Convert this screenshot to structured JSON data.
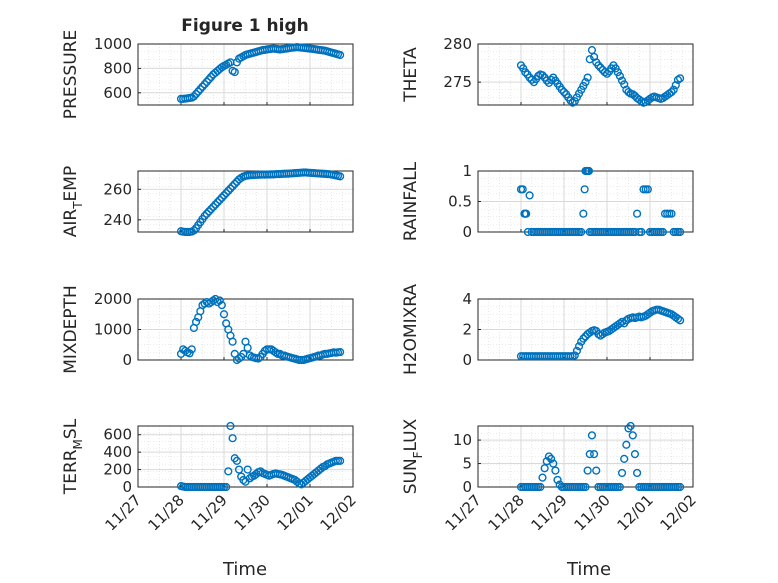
{
  "figure_title": "Figure 1 high",
  "x_tick_labels": [
    "11/27",
    "11/28",
    "11/29",
    "11/30",
    "12/01",
    "12/02"
  ],
  "x_label": "Time",
  "colors": {
    "marker": "#0072BD",
    "axis": "#262626",
    "grid": "#d9d9d9"
  },
  "chart_data": [
    {
      "type": "scatter",
      "ylabel": "PRESSURE",
      "ylim": [
        500,
        1000
      ],
      "yticks": [
        600,
        800,
        1000
      ],
      "x": [
        1,
        1.05,
        1.1,
        1.15,
        1.2,
        1.25,
        1.3,
        1.35,
        1.4,
        1.45,
        1.5,
        1.55,
        1.6,
        1.65,
        1.7,
        1.75,
        1.8,
        1.85,
        1.9,
        1.95,
        2,
        2.05,
        2.1,
        2.15,
        2.2,
        2.25,
        2.3,
        2.35,
        2.4,
        2.45,
        2.5,
        2.55,
        2.6,
        2.65,
        2.7,
        2.75,
        2.8,
        2.85,
        2.9,
        2.95,
        3,
        3.05,
        3.1,
        3.15,
        3.2,
        3.25,
        3.3,
        3.35,
        3.4,
        3.45,
        3.5,
        3.55,
        3.6,
        3.65,
        3.7,
        3.75,
        3.8,
        3.85,
        3.9,
        3.95,
        4,
        4.05,
        4.1,
        4.15,
        4.2,
        4.25,
        4.3,
        4.35,
        4.4,
        4.45,
        4.5,
        4.55,
        4.6,
        4.65,
        4.7
      ],
      "y": [
        550,
        550,
        552,
        555,
        558,
        560,
        570,
        590,
        610,
        630,
        650,
        670,
        690,
        710,
        730,
        750,
        765,
        780,
        795,
        810,
        820,
        830,
        840,
        850,
        780,
        770,
        850,
        880,
        890,
        900,
        910,
        915,
        920,
        925,
        930,
        935,
        940,
        945,
        950,
        952,
        955,
        958,
        960,
        962,
        960,
        958,
        955,
        958,
        960,
        962,
        965,
        968,
        970,
        972,
        975,
        972,
        970,
        968,
        966,
        964,
        962,
        960,
        958,
        955,
        952,
        950,
        948,
        945,
        940,
        935,
        930,
        925,
        920,
        915,
        910
      ]
    },
    {
      "type": "scatter",
      "ylabel": "THETA",
      "ylim": [
        272,
        280
      ],
      "yticks": [
        275,
        280
      ],
      "x": [
        1,
        1.05,
        1.1,
        1.15,
        1.2,
        1.25,
        1.3,
        1.35,
        1.4,
        1.45,
        1.5,
        1.55,
        1.6,
        1.65,
        1.7,
        1.75,
        1.8,
        1.85,
        1.9,
        1.95,
        2,
        2.05,
        2.1,
        2.15,
        2.2,
        2.25,
        2.3,
        2.35,
        2.4,
        2.45,
        2.5,
        2.55,
        2.6,
        2.65,
        2.7,
        2.75,
        2.8,
        2.85,
        2.9,
        2.95,
        3,
        3.05,
        3.1,
        3.15,
        3.2,
        3.25,
        3.3,
        3.35,
        3.4,
        3.45,
        3.5,
        3.55,
        3.6,
        3.65,
        3.7,
        3.75,
        3.8,
        3.85,
        3.9,
        3.95,
        4,
        4.05,
        4.1,
        4.15,
        4.2,
        4.25,
        4.3,
        4.35,
        4.4,
        4.45,
        4.5,
        4.55,
        4.6,
        4.65,
        4.7
      ],
      "y": [
        277.2,
        276.8,
        276.3,
        276.0,
        275.6,
        275.3,
        275.0,
        275.4,
        275.8,
        276.0,
        275.9,
        275.6,
        275.2,
        274.9,
        275.3,
        275.6,
        275.2,
        274.8,
        274.4,
        274.0,
        273.7,
        273.4,
        273.0,
        272.6,
        272.3,
        272.5,
        273.0,
        273.5,
        274.0,
        274.5,
        275.0,
        275.6,
        278.0,
        279.2,
        278.3,
        277.6,
        277.2,
        276.9,
        276.6,
        276.3,
        276.1,
        276.4,
        276.8,
        277.2,
        276.8,
        276.3,
        275.8,
        275.2,
        274.7,
        274.0,
        273.7,
        273.5,
        273.4,
        273.2,
        272.9,
        272.7,
        272.5,
        272.3,
        272.4,
        272.6,
        272.8,
        273.0,
        273.1,
        273.0,
        272.9,
        272.8,
        272.9,
        273.1,
        273.3,
        273.5,
        273.7,
        274.0,
        274.6,
        275.3,
        275.5
      ]
    },
    {
      "type": "scatter",
      "ylabel": "AIR_TEMP",
      "ylim": [
        232,
        272
      ],
      "yticks": [
        240,
        260
      ],
      "x": [
        1,
        1.05,
        1.1,
        1.15,
        1.2,
        1.25,
        1.3,
        1.35,
        1.4,
        1.45,
        1.5,
        1.55,
        1.6,
        1.65,
        1.7,
        1.75,
        1.8,
        1.85,
        1.9,
        1.95,
        2,
        2.05,
        2.1,
        2.15,
        2.2,
        2.25,
        2.3,
        2.35,
        2.4,
        2.45,
        2.5,
        2.55,
        2.6,
        2.65,
        2.7,
        2.75,
        2.8,
        2.85,
        2.9,
        2.95,
        3,
        3.05,
        3.1,
        3.15,
        3.2,
        3.25,
        3.3,
        3.35,
        3.4,
        3.45,
        3.5,
        3.55,
        3.6,
        3.65,
        3.7,
        3.75,
        3.8,
        3.85,
        3.9,
        3.95,
        4,
        4.05,
        4.1,
        4.15,
        4.2,
        4.25,
        4.3,
        4.35,
        4.4,
        4.45,
        4.5,
        4.55,
        4.6,
        4.65,
        4.7
      ],
      "y": [
        232.5,
        232.2,
        232,
        232,
        232,
        232.3,
        233,
        234.5,
        236.5,
        238.5,
        240.5,
        242.5,
        244,
        245.5,
        247,
        248.5,
        250,
        251.5,
        253,
        254.5,
        256,
        257.5,
        259,
        260.5,
        262,
        263.5,
        265,
        266.5,
        267.5,
        268.3,
        268.8,
        269,
        269.2,
        269.3,
        269.4,
        269.5,
        269.5,
        269.6,
        269.6,
        269.6,
        269.7,
        269.7,
        269.8,
        269.8,
        269.9,
        270,
        270,
        270.1,
        270.2,
        270.2,
        270.3,
        270.4,
        270.5,
        270.6,
        270.7,
        270.8,
        270.9,
        271,
        271,
        270.9,
        270.8,
        270.7,
        270.6,
        270.5,
        270.4,
        270.3,
        270.2,
        270.1,
        270,
        269.9,
        269.7,
        269.4,
        269.1,
        268.8,
        268.5
      ]
    },
    {
      "type": "scatter",
      "ylabel": "RAINFALL",
      "ylim": [
        0,
        1
      ],
      "yticks": [
        0,
        0.5,
        1
      ],
      "x": [
        1,
        1.04,
        1.08,
        1.1,
        1.12,
        1.16,
        1.2,
        1.25,
        1.3,
        1.35,
        1.4,
        1.45,
        1.5,
        1.55,
        1.6,
        1.65,
        1.7,
        1.75,
        1.8,
        1.85,
        1.9,
        1.95,
        2,
        2.05,
        2.1,
        2.15,
        2.2,
        2.25,
        2.3,
        2.35,
        2.4,
        2.45,
        2.48,
        2.5,
        2.52,
        2.55,
        2.58,
        2.6,
        2.65,
        2.7,
        2.75,
        2.8,
        2.85,
        2.9,
        2.95,
        3,
        3.05,
        3.1,
        3.15,
        3.2,
        3.25,
        3.3,
        3.35,
        3.4,
        3.45,
        3.5,
        3.55,
        3.6,
        3.65,
        3.7,
        3.75,
        3.8,
        3.85,
        3.9,
        3.95,
        4,
        4.05,
        4.1,
        4.15,
        4.2,
        4.25,
        4.3,
        4.35,
        4.4,
        4.45,
        4.5,
        4.55,
        4.6,
        4.65,
        4.7
      ],
      "y": [
        0.7,
        0.7,
        0.3,
        0.3,
        0.3,
        0,
        0.6,
        0,
        0,
        0,
        0,
        0,
        0,
        0,
        0,
        0,
        0,
        0,
        0,
        0,
        0,
        0,
        0,
        0,
        0,
        0,
        0,
        0,
        0,
        0,
        0,
        0.3,
        0.7,
        1,
        1,
        1,
        1,
        0,
        0,
        0,
        0,
        0,
        0,
        0,
        0,
        0,
        0,
        0,
        0,
        0,
        0,
        0,
        0,
        0,
        0,
        0,
        0,
        0,
        0,
        0.3,
        0,
        0,
        0.7,
        0.7,
        0.7,
        0,
        0,
        0,
        0,
        0,
        0,
        0,
        0.3,
        0.3,
        0.3,
        0.3,
        0,
        0,
        0,
        0
      ]
    },
    {
      "type": "scatter",
      "ylabel": "MIXDEPTH",
      "ylim": [
        0,
        2000
      ],
      "yticks": [
        0,
        1000,
        2000
      ],
      "x": [
        1,
        1.05,
        1.1,
        1.15,
        1.2,
        1.25,
        1.3,
        1.35,
        1.4,
        1.45,
        1.5,
        1.55,
        1.6,
        1.65,
        1.7,
        1.75,
        1.8,
        1.85,
        1.9,
        1.95,
        2,
        2.05,
        2.1,
        2.15,
        2.2,
        2.25,
        2.3,
        2.35,
        2.4,
        2.45,
        2.5,
        2.55,
        2.6,
        2.65,
        2.7,
        2.75,
        2.8,
        2.85,
        2.9,
        2.95,
        3,
        3.05,
        3.1,
        3.15,
        3.2,
        3.25,
        3.3,
        3.35,
        3.4,
        3.45,
        3.5,
        3.55,
        3.6,
        3.65,
        3.7,
        3.75,
        3.8,
        3.85,
        3.9,
        3.95,
        4,
        4.05,
        4.1,
        4.15,
        4.2,
        4.25,
        4.3,
        4.35,
        4.4,
        4.45,
        4.5,
        4.55,
        4.6,
        4.65,
        4.7
      ],
      "y": [
        200,
        350,
        300,
        250,
        220,
        350,
        1050,
        1250,
        1400,
        1600,
        1800,
        1850,
        1900,
        1850,
        1900,
        1950,
        2000,
        1900,
        1950,
        1800,
        1500,
        1200,
        1000,
        800,
        600,
        200,
        0,
        50,
        100,
        200,
        600,
        400,
        150,
        100,
        80,
        60,
        50,
        100,
        200,
        300,
        350,
        350,
        350,
        300,
        250,
        200,
        200,
        150,
        150,
        120,
        100,
        80,
        60,
        40,
        20,
        0,
        0,
        0,
        20,
        40,
        60,
        80,
        100,
        120,
        150,
        150,
        180,
        200,
        200,
        220,
        230,
        250,
        240,
        250,
        260
      ]
    },
    {
      "type": "scatter",
      "ylabel": "H2OMIXRA",
      "ylim": [
        0,
        4
      ],
      "yticks": [
        0,
        2,
        4
      ],
      "x": [
        1,
        1.05,
        1.1,
        1.15,
        1.2,
        1.25,
        1.3,
        1.35,
        1.4,
        1.45,
        1.5,
        1.55,
        1.6,
        1.65,
        1.7,
        1.75,
        1.8,
        1.85,
        1.9,
        1.95,
        2,
        2.05,
        2.1,
        2.15,
        2.2,
        2.25,
        2.3,
        2.35,
        2.4,
        2.45,
        2.5,
        2.55,
        2.6,
        2.65,
        2.7,
        2.75,
        2.8,
        2.85,
        2.9,
        2.95,
        3,
        3.05,
        3.1,
        3.15,
        3.2,
        3.25,
        3.3,
        3.35,
        3.4,
        3.45,
        3.5,
        3.55,
        3.6,
        3.65,
        3.7,
        3.75,
        3.8,
        3.85,
        3.9,
        3.95,
        4,
        4.05,
        4.1,
        4.15,
        4.2,
        4.25,
        4.3,
        4.35,
        4.4,
        4.45,
        4.5,
        4.55,
        4.6,
        4.65,
        4.7
      ],
      "y": [
        0.25,
        0.25,
        0.25,
        0.25,
        0.25,
        0.25,
        0.25,
        0.25,
        0.25,
        0.25,
        0.25,
        0.25,
        0.25,
        0.25,
        0.25,
        0.25,
        0.25,
        0.25,
        0.25,
        0.25,
        0.25,
        0.25,
        0.25,
        0.25,
        0.25,
        0.3,
        0.6,
        0.9,
        1.2,
        1.4,
        1.55,
        1.7,
        1.8,
        1.9,
        1.95,
        1.9,
        1.7,
        1.6,
        1.7,
        1.8,
        1.85,
        1.9,
        2.0,
        2.1,
        2.2,
        2.3,
        2.4,
        2.5,
        2.4,
        2.6,
        2.7,
        2.75,
        2.8,
        2.75,
        2.8,
        2.85,
        2.8,
        2.85,
        2.9,
        3.0,
        3.1,
        3.2,
        3.25,
        3.3,
        3.3,
        3.25,
        3.2,
        3.15,
        3.1,
        3.05,
        3.0,
        2.9,
        2.8,
        2.7,
        2.6
      ]
    },
    {
      "type": "scatter",
      "ylabel": "TERR_MSL",
      "ylim": [
        0,
        700
      ],
      "yticks": [
        0,
        200,
        400,
        600
      ],
      "x": [
        1,
        1.05,
        1.1,
        1.15,
        1.2,
        1.25,
        1.3,
        1.35,
        1.4,
        1.45,
        1.5,
        1.55,
        1.6,
        1.65,
        1.7,
        1.75,
        1.8,
        1.85,
        1.9,
        1.95,
        2,
        2.05,
        2.1,
        2.15,
        2.2,
        2.25,
        2.3,
        2.35,
        2.4,
        2.45,
        2.5,
        2.55,
        2.6,
        2.65,
        2.7,
        2.75,
        2.8,
        2.85,
        2.9,
        2.95,
        3,
        3.05,
        3.1,
        3.15,
        3.2,
        3.25,
        3.3,
        3.35,
        3.4,
        3.45,
        3.5,
        3.55,
        3.6,
        3.65,
        3.7,
        3.75,
        3.8,
        3.85,
        3.9,
        3.95,
        4,
        4.05,
        4.1,
        4.15,
        4.2,
        4.25,
        4.3,
        4.35,
        4.4,
        4.45,
        4.5,
        4.55,
        4.6,
        4.65,
        4.7
      ],
      "y": [
        10,
        5,
        0,
        0,
        0,
        0,
        0,
        0,
        0,
        0,
        0,
        0,
        0,
        0,
        0,
        0,
        0,
        0,
        0,
        0,
        0,
        0,
        180,
        700,
        560,
        330,
        300,
        200,
        120,
        80,
        60,
        200,
        100,
        120,
        130,
        150,
        170,
        180,
        160,
        150,
        140,
        130,
        140,
        150,
        155,
        150,
        145,
        140,
        130,
        120,
        110,
        100,
        90,
        80,
        60,
        40,
        30,
        50,
        70,
        90,
        110,
        130,
        150,
        170,
        190,
        210,
        230,
        240,
        260,
        270,
        280,
        290,
        300,
        300,
        300
      ]
    },
    {
      "type": "scatter",
      "ylabel": "SUN_FLUX",
      "ylim": [
        0,
        13
      ],
      "yticks": [
        0,
        5,
        10
      ],
      "x": [
        1,
        1.05,
        1.1,
        1.15,
        1.2,
        1.25,
        1.3,
        1.35,
        1.4,
        1.45,
        1.5,
        1.55,
        1.6,
        1.65,
        1.7,
        1.75,
        1.8,
        1.85,
        1.9,
        1.95,
        2,
        2.05,
        2.1,
        2.15,
        2.2,
        2.25,
        2.3,
        2.35,
        2.4,
        2.45,
        2.5,
        2.55,
        2.6,
        2.65,
        2.7,
        2.75,
        2.8,
        2.85,
        2.9,
        2.95,
        3,
        3.05,
        3.1,
        3.15,
        3.2,
        3.25,
        3.3,
        3.35,
        3.4,
        3.45,
        3.5,
        3.55,
        3.6,
        3.65,
        3.7,
        3.75,
        3.8,
        3.85,
        3.9,
        3.95,
        4,
        4.05,
        4.1,
        4.15,
        4.2,
        4.25,
        4.3,
        4.35,
        4.4,
        4.45,
        4.5,
        4.55,
        4.6,
        4.65,
        4.7
      ],
      "y": [
        0,
        0,
        0,
        0,
        0,
        0,
        0,
        0,
        0,
        0,
        2,
        4,
        5.5,
        6.5,
        6,
        5,
        3.5,
        1.5,
        0.5,
        0,
        0,
        0,
        0,
        0,
        0,
        0,
        0,
        0,
        0,
        0,
        0,
        3.5,
        7,
        11,
        7,
        3.5,
        0,
        0,
        0,
        0,
        0,
        0,
        0,
        0,
        0,
        0,
        0,
        3,
        6,
        9,
        12.5,
        13,
        11,
        7,
        3,
        0,
        0,
        0,
        0,
        0,
        0,
        0,
        0,
        0,
        0,
        0,
        0,
        0,
        0,
        0,
        0,
        0,
        0,
        0,
        0
      ]
    }
  ]
}
